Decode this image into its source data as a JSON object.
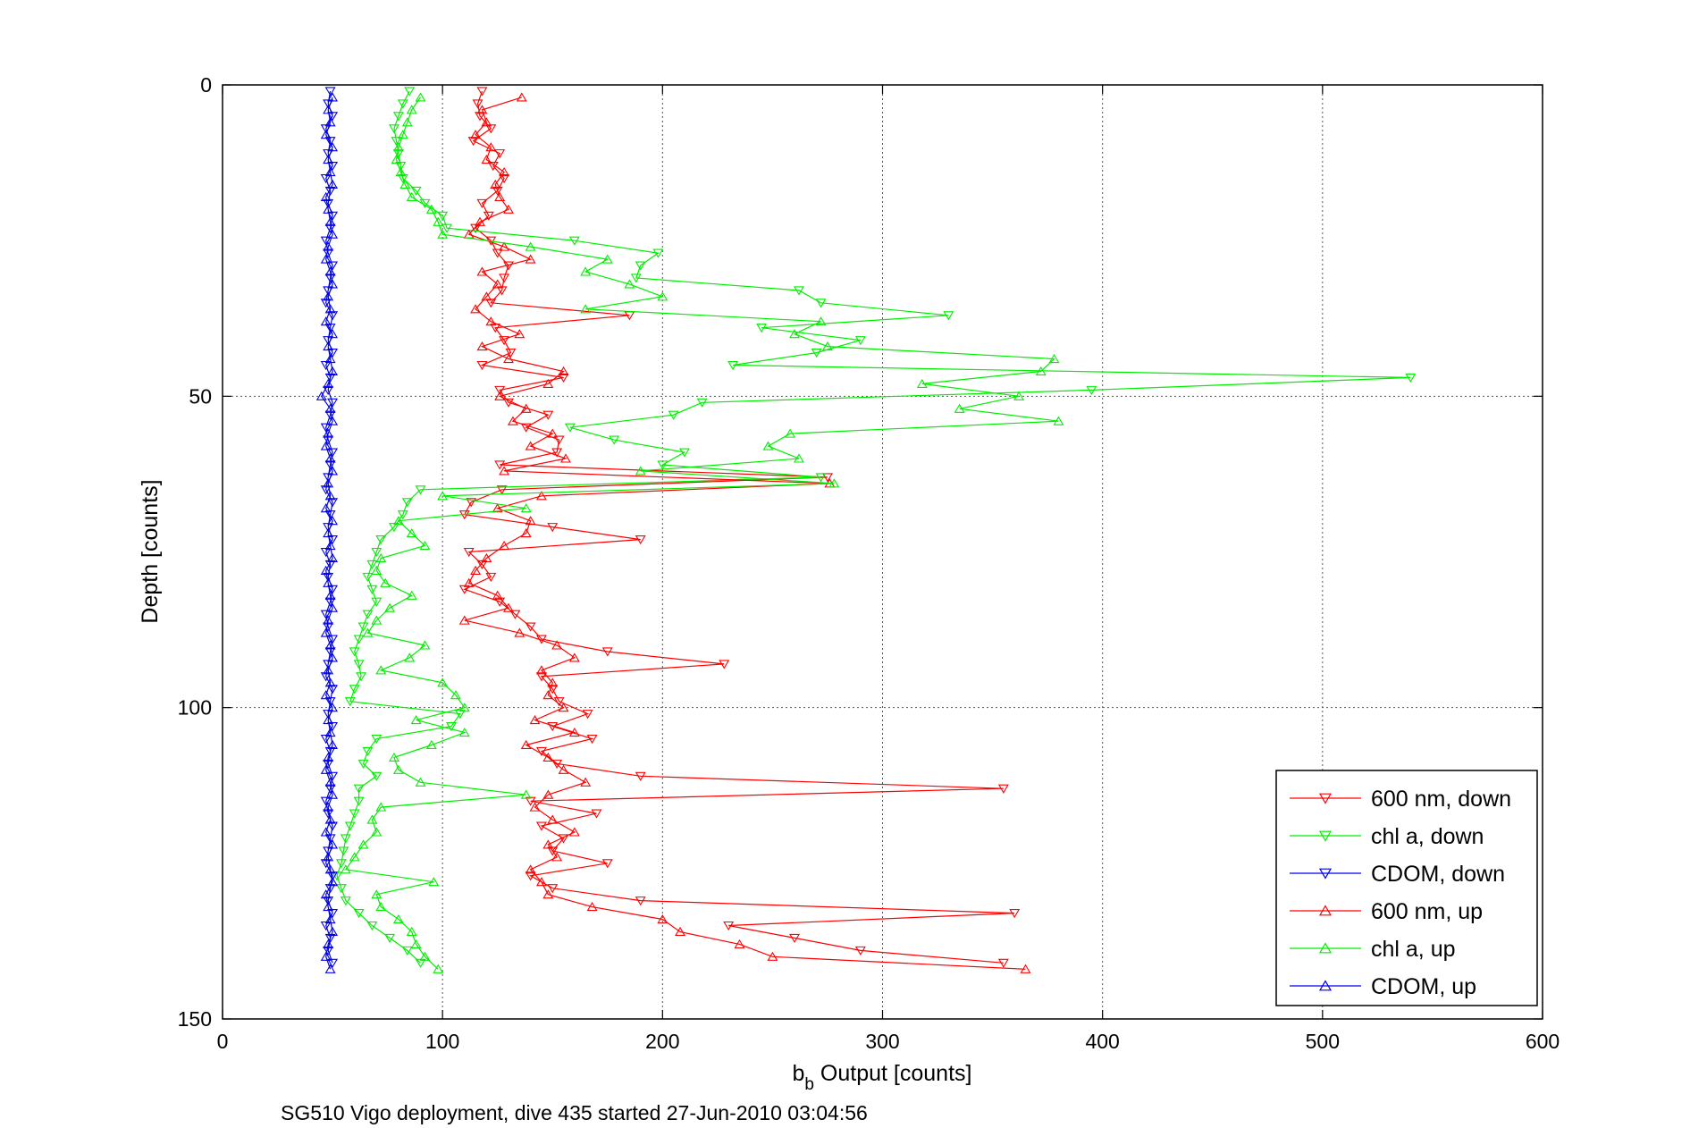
{
  "chart_data": {
    "type": "line",
    "xlabel_main": "b",
    "xlabel_sub": "b",
    "xlabel_rest": " Output [counts]",
    "ylabel": "Depth [counts]",
    "caption": "SG510 Vigo deployment, dive 435 started 27-Jun-2010 03:04:56",
    "xlim": [
      0,
      600
    ],
    "ylim": [
      0,
      150
    ],
    "y_reversed": true,
    "grid": true,
    "legend_position": "bottom-right",
    "xticks": [
      0,
      100,
      200,
      300,
      400,
      500,
      600
    ],
    "yticks": [
      0,
      50,
      100,
      150
    ],
    "xtick_labels": [
      "0",
      "100",
      "200",
      "300",
      "400",
      "500",
      "600"
    ],
    "ytick_labels": [
      "0",
      "50",
      "100",
      "150"
    ],
    "series": [
      {
        "name": "600 nm, down",
        "color": "#ff0000",
        "marker": "triangle-down",
        "depth": [
          1,
          3,
          5,
          7,
          9,
          11,
          13,
          15,
          17,
          19,
          21,
          23,
          25,
          27,
          29,
          31,
          33,
          35,
          37,
          39,
          41,
          43,
          45,
          47,
          49,
          51,
          53,
          55,
          57,
          59,
          61,
          63,
          65,
          67,
          69,
          71,
          73,
          75,
          77,
          79,
          81,
          83,
          85,
          87,
          89,
          91,
          93,
          95,
          97,
          99,
          101,
          103,
          105,
          107,
          109,
          111,
          113,
          115,
          117,
          119,
          121,
          123,
          125,
          127,
          129,
          131,
          133,
          135,
          137,
          139,
          141
        ],
        "x": [
          118,
          116,
          117,
          122,
          114,
          126,
          123,
          128,
          125,
          118,
          121,
          115,
          122,
          125,
          130,
          128,
          127,
          122,
          185,
          124,
          128,
          131,
          118,
          155,
          126,
          130,
          148,
          138,
          153,
          152,
          126,
          275,
          127,
          113,
          110,
          150,
          190,
          112,
          118,
          122,
          110,
          126,
          133,
          140,
          145,
          175,
          228,
          145,
          150,
          153,
          166,
          150,
          168,
          145,
          152,
          190,
          355,
          140,
          170,
          145,
          155,
          150,
          175,
          140,
          150,
          190,
          360,
          230,
          260,
          290,
          355
        ]
      },
      {
        "name": "chl a, down",
        "color": "#00ee00",
        "marker": "triangle-down",
        "depth": [
          1,
          3,
          5,
          7,
          9,
          11,
          13,
          15,
          17,
          19,
          21,
          23,
          25,
          27,
          29,
          31,
          33,
          35,
          37,
          39,
          41,
          43,
          45,
          47,
          49,
          51,
          53,
          55,
          57,
          59,
          61,
          63,
          65,
          67,
          69,
          71,
          73,
          75,
          77,
          79,
          81,
          83,
          85,
          87,
          89,
          91,
          93,
          95,
          97,
          99,
          101,
          103,
          105,
          107,
          109,
          111,
          113,
          115,
          117,
          119,
          121,
          123,
          125,
          127,
          129,
          131,
          133,
          135,
          137,
          139,
          141
        ],
        "x": [
          85,
          82,
          80,
          78,
          79,
          80,
          81,
          82,
          88,
          92,
          100,
          102,
          160,
          198,
          190,
          188,
          262,
          272,
          330,
          245,
          290,
          270,
          232,
          540,
          395,
          218,
          205,
          158,
          178,
          210,
          200,
          272,
          90,
          84,
          82,
          78,
          72,
          70,
          68,
          66,
          68,
          70,
          66,
          64,
          62,
          60,
          62,
          63,
          60,
          58,
          108,
          104,
          70,
          66,
          64,
          70,
          62,
          62,
          60,
          58,
          56,
          55,
          54,
          52,
          54,
          56,
          62,
          68,
          76,
          84,
          90
        ]
      },
      {
        "name": "CDOM, down",
        "color": "#0000ee",
        "marker": "triangle-down",
        "depth": [
          1,
          3,
          5,
          7,
          9,
          11,
          13,
          15,
          17,
          19,
          21,
          23,
          25,
          27,
          29,
          31,
          33,
          35,
          37,
          39,
          41,
          43,
          45,
          47,
          49,
          51,
          53,
          55,
          57,
          59,
          61,
          63,
          65,
          67,
          69,
          71,
          73,
          75,
          77,
          79,
          81,
          83,
          85,
          87,
          89,
          91,
          93,
          95,
          97,
          99,
          101,
          103,
          105,
          107,
          109,
          111,
          113,
          115,
          117,
          119,
          121,
          123,
          125,
          127,
          129,
          131,
          133,
          135,
          137,
          139,
          141
        ],
        "x": [
          49,
          48,
          50,
          47,
          49,
          48,
          50,
          47,
          49,
          48,
          50,
          49,
          47,
          48,
          50,
          49,
          48,
          47,
          50,
          49,
          48,
          50,
          47,
          49,
          48,
          50,
          49,
          47,
          48,
          50,
          49,
          48,
          47,
          50,
          49,
          48,
          50,
          47,
          49,
          48,
          50,
          49,
          47,
          48,
          50,
          49,
          48,
          47,
          50,
          49,
          48,
          50,
          47,
          49,
          48,
          50,
          49,
          47,
          48,
          50,
          49,
          48,
          47,
          50,
          49,
          48,
          50,
          47,
          49,
          48,
          50
        ]
      },
      {
        "name": "600 nm, up",
        "color": "#ff0000",
        "marker": "triangle-up",
        "depth": [
          2,
          4,
          6,
          8,
          10,
          12,
          14,
          16,
          18,
          20,
          22,
          24,
          26,
          28,
          30,
          32,
          34,
          36,
          38,
          40,
          42,
          44,
          46,
          48,
          50,
          52,
          54,
          56,
          58,
          60,
          62,
          64,
          66,
          68,
          70,
          72,
          74,
          76,
          78,
          80,
          82,
          84,
          86,
          88,
          90,
          92,
          94,
          96,
          98,
          100,
          102,
          104,
          106,
          108,
          110,
          112,
          114,
          116,
          118,
          120,
          122,
          124,
          126,
          128,
          130,
          132,
          134,
          136,
          138,
          140,
          142
        ],
        "x": [
          136,
          118,
          120,
          115,
          122,
          120,
          128,
          124,
          126,
          130,
          117,
          112,
          128,
          140,
          118,
          125,
          120,
          115,
          122,
          135,
          118,
          130,
          155,
          148,
          126,
          138,
          132,
          150,
          140,
          156,
          128,
          276,
          145,
          125,
          140,
          138,
          128,
          120,
          115,
          112,
          125,
          130,
          110,
          135,
          152,
          160,
          145,
          150,
          148,
          155,
          142,
          160,
          138,
          148,
          155,
          165,
          148,
          142,
          150,
          160,
          148,
          152,
          140,
          145,
          148,
          168,
          200,
          208,
          235,
          250,
          365
        ]
      },
      {
        "name": "chl a, up",
        "color": "#00ee00",
        "marker": "triangle-up",
        "depth": [
          2,
          4,
          6,
          8,
          10,
          12,
          14,
          16,
          18,
          20,
          22,
          24,
          26,
          28,
          30,
          32,
          34,
          36,
          38,
          40,
          42,
          44,
          46,
          48,
          50,
          52,
          54,
          56,
          58,
          60,
          62,
          64,
          66,
          68,
          70,
          72,
          74,
          76,
          78,
          80,
          82,
          84,
          86,
          88,
          90,
          92,
          94,
          96,
          98,
          100,
          102,
          104,
          106,
          108,
          110,
          112,
          114,
          116,
          118,
          120,
          122,
          124,
          126,
          128,
          130,
          132,
          134,
          136,
          138,
          140,
          142
        ],
        "x": [
          90,
          86,
          84,
          82,
          80,
          79,
          81,
          83,
          86,
          95,
          98,
          100,
          140,
          175,
          165,
          185,
          200,
          165,
          272,
          260,
          275,
          378,
          372,
          318,
          362,
          335,
          380,
          258,
          248,
          262,
          190,
          278,
          100,
          138,
          80,
          86,
          92,
          72,
          70,
          74,
          86,
          76,
          70,
          66,
          92,
          85,
          72,
          100,
          106,
          110,
          88,
          110,
          95,
          78,
          80,
          90,
          138,
          72,
          68,
          70,
          64,
          60,
          56,
          96,
          70,
          72,
          80,
          86,
          88,
          92,
          98
        ]
      },
      {
        "name": "CDOM, up",
        "color": "#0000ee",
        "marker": "triangle-up",
        "depth": [
          2,
          4,
          6,
          8,
          10,
          12,
          14,
          16,
          18,
          20,
          22,
          24,
          26,
          28,
          30,
          32,
          34,
          36,
          38,
          40,
          42,
          44,
          46,
          48,
          50,
          52,
          54,
          56,
          58,
          60,
          62,
          64,
          66,
          68,
          70,
          72,
          74,
          76,
          78,
          80,
          82,
          84,
          86,
          88,
          90,
          92,
          94,
          96,
          98,
          100,
          102,
          104,
          106,
          108,
          110,
          112,
          114,
          116,
          118,
          120,
          122,
          124,
          126,
          128,
          130,
          132,
          134,
          136,
          138,
          140,
          142
        ],
        "x": [
          50,
          48,
          49,
          47,
          50,
          48,
          49,
          50,
          47,
          48,
          49,
          50,
          48,
          47,
          49,
          50,
          48,
          49,
          47,
          50,
          48,
          49,
          50,
          48,
          45,
          49,
          50,
          48,
          47,
          49,
          50,
          48,
          49,
          47,
          50,
          48,
          49,
          50,
          47,
          48,
          49,
          50,
          48,
          47,
          49,
          50,
          48,
          49,
          47,
          50,
          48,
          49,
          50,
          48,
          47,
          49,
          50,
          48,
          49,
          47,
          50,
          48,
          49,
          50,
          47,
          48,
          49,
          50,
          48,
          47,
          49
        ]
      }
    ]
  }
}
